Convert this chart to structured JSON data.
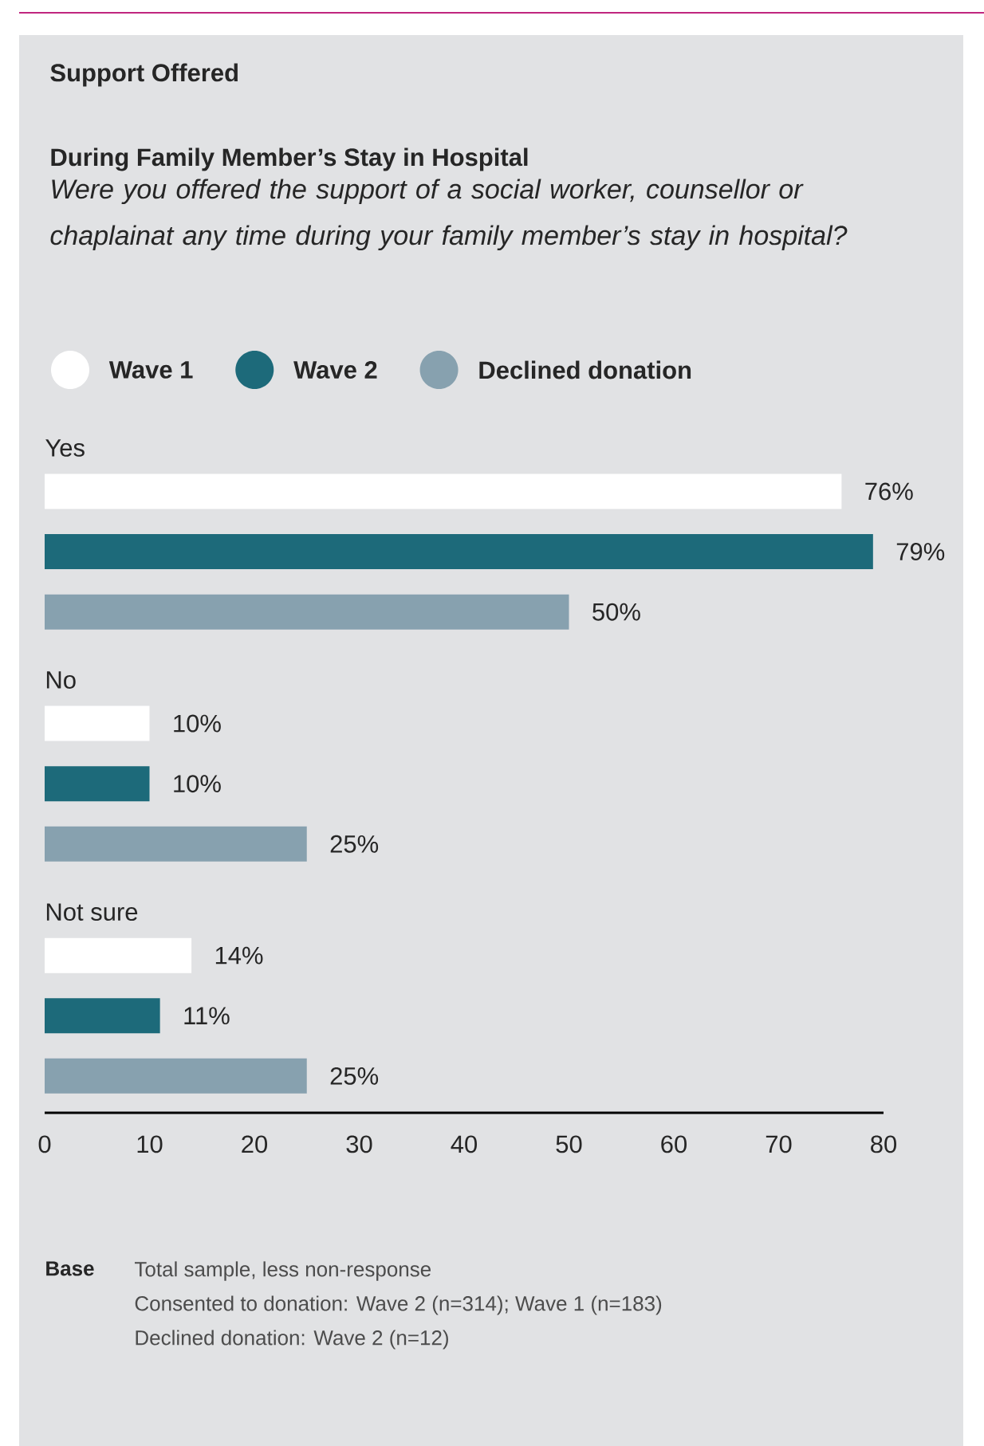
{
  "chart_data": {
    "type": "bar",
    "orientation": "horizontal",
    "title": "Support Offered",
    "subtitle": "During Family Member’s Stay in Hospital",
    "annotations": [
      "Were you offered the support of a social worker, counsellor or chaplainat any time during your family member’s stay in hospital?",
      "Base",
      "Total sample, less non-response",
      "Consented to donation: Wave 2 (n=314); Wave 1 (n=183)",
      "Declined donation: Wave 2 (n=12)"
    ],
    "categories": [
      "Yes",
      "No",
      "Not sure"
    ],
    "series": [
      {
        "name": "Wave 1",
        "color": "#ffffff",
        "values": [
          76,
          10,
          14
        ],
        "value_labels": [
          "76%",
          "10%",
          "14%"
        ]
      },
      {
        "name": "Wave 2",
        "color": "#1d6a7a",
        "values": [
          79,
          10,
          11
        ],
        "value_labels": [
          "79%",
          "10%",
          "11%"
        ]
      },
      {
        "name": "Declined donation",
        "color": "#87a1af",
        "values": [
          50,
          25,
          25
        ],
        "value_labels": [
          "50%",
          "25%",
          "25%"
        ]
      }
    ],
    "xlim": [
      0,
      80
    ],
    "xticks": [
      0,
      10,
      20,
      30,
      40,
      50,
      60,
      70,
      80
    ],
    "legend": "top",
    "grid": false
  }
}
